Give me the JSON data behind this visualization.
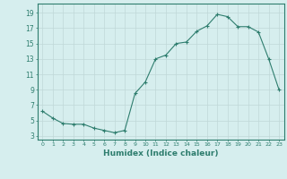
{
  "x": [
    0,
    1,
    2,
    3,
    4,
    5,
    6,
    7,
    8,
    9,
    10,
    11,
    12,
    13,
    14,
    15,
    16,
    17,
    18,
    19,
    20,
    21,
    22,
    23
  ],
  "y": [
    6.2,
    5.3,
    4.6,
    4.5,
    4.5,
    4.0,
    3.7,
    3.4,
    3.7,
    8.5,
    10.0,
    13.0,
    13.5,
    15.0,
    15.2,
    16.6,
    17.3,
    18.8,
    18.5,
    17.2,
    17.2,
    16.5,
    13.0,
    9.0
  ],
  "xlim": [
    -0.5,
    23.5
  ],
  "ylim": [
    2.5,
    20.2
  ],
  "yticks": [
    3,
    5,
    7,
    9,
    11,
    13,
    15,
    17,
    19
  ],
  "xticks": [
    0,
    1,
    2,
    3,
    4,
    5,
    6,
    7,
    8,
    9,
    10,
    11,
    12,
    13,
    14,
    15,
    16,
    17,
    18,
    19,
    20,
    21,
    22,
    23
  ],
  "xlabel": "Humidex (Indice chaleur)",
  "line_color": "#2e7d6e",
  "marker": "+",
  "bg_color": "#d6eeee",
  "grid_color": "#c0d8d8"
}
